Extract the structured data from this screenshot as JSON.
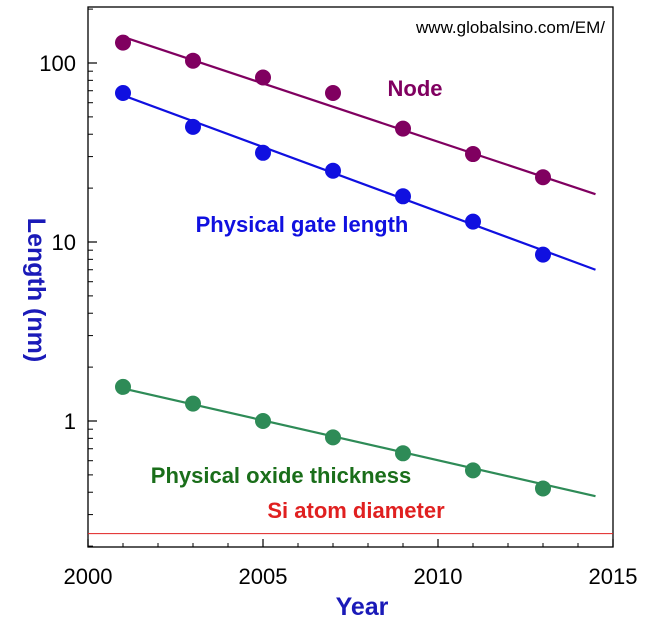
{
  "watermark": "www.globalsino.com/EM/",
  "chart_data": {
    "type": "scatter",
    "xlabel": "Year",
    "ylabel": "Length (nm)",
    "xlim": [
      2000,
      2015
    ],
    "ylim": [
      0.2,
      200
    ],
    "yscale": "log",
    "xticks": [
      2000,
      2005,
      2010,
      2015
    ],
    "yticks": [
      {
        "value": 1,
        "label": "1"
      },
      {
        "value": 10,
        "label": "10"
      },
      {
        "value": 100,
        "label": "100"
      }
    ],
    "grid": false,
    "series": [
      {
        "name": "Node",
        "color": "#800060",
        "x": [
          2001,
          2003,
          2005,
          2007,
          2009,
          2011,
          2013
        ],
        "values": [
          130,
          103,
          83,
          68,
          43,
          31,
          23
        ],
        "trend": {
          "x": [
            2001,
            2014.5
          ],
          "y": [
            140,
            18.5
          ]
        }
      },
      {
        "name": "Physical gate length",
        "color": "#1010e0",
        "x": [
          2001,
          2003,
          2005,
          2007,
          2009,
          2011,
          2013
        ],
        "values": [
          68,
          44,
          31.5,
          25,
          18,
          13,
          8.5
        ],
        "trend": {
          "x": [
            2001,
            2014.5
          ],
          "y": [
            66,
            7
          ]
        }
      },
      {
        "name": "Physical oxide thickness",
        "color": "#2e8b57",
        "label_color": "#1a6e1a",
        "x": [
          2001,
          2003,
          2005,
          2007,
          2009,
          2011,
          2013
        ],
        "values": [
          1.55,
          1.25,
          1.0,
          0.81,
          0.66,
          0.53,
          0.42
        ],
        "trend": {
          "x": [
            2001,
            2014.5
          ],
          "y": [
            1.52,
            0.38
          ]
        }
      }
    ],
    "reference_lines": [
      {
        "name": "Si atom diameter",
        "y": 0.235,
        "color": "#e02020"
      }
    ]
  }
}
